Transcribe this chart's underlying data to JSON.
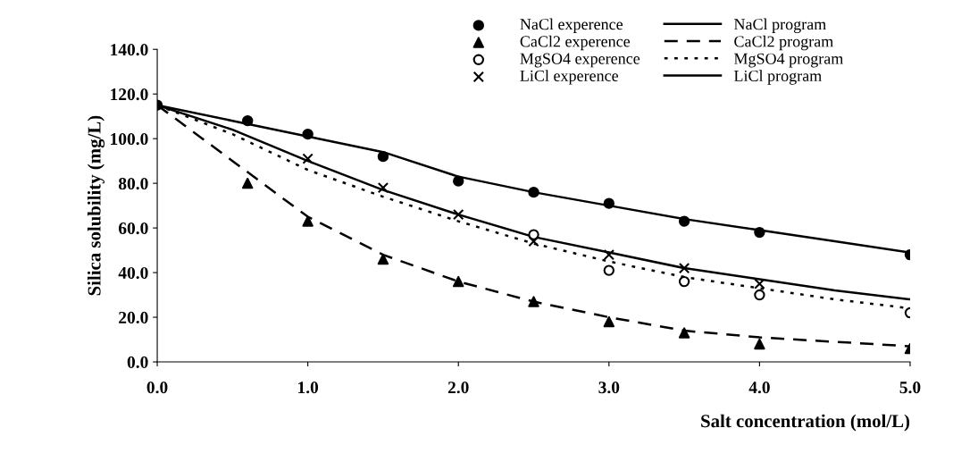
{
  "chart_data": {
    "type": "line",
    "xlabel": "Salt concentration (mol/L)",
    "ylabel": "Silica solubility (mg/L)",
    "xlim": [
      0,
      5
    ],
    "ylim": [
      0,
      140
    ],
    "xticks": [
      {
        "value": 0,
        "label": "0.0"
      },
      {
        "value": 1,
        "label": "1.0"
      },
      {
        "value": 2,
        "label": "2.0"
      },
      {
        "value": 3,
        "label": "3.0"
      },
      {
        "value": 4,
        "label": "4.0"
      },
      {
        "value": 5,
        "label": "5.0"
      }
    ],
    "yticks": [
      {
        "value": 0,
        "label": "0.0"
      },
      {
        "value": 20,
        "label": "20.0"
      },
      {
        "value": 40,
        "label": "40.0"
      },
      {
        "value": 60,
        "label": "60.0"
      },
      {
        "value": 80,
        "label": "80.0"
      },
      {
        "value": 100,
        "label": "100.0"
      },
      {
        "value": 120,
        "label": "120.0"
      },
      {
        "value": 140,
        "label": "140.0"
      }
    ],
    "grid": false,
    "legend": "top right",
    "series": [
      {
        "name": "NaCl experence",
        "type": "scatter",
        "marker": "circle",
        "color": "#000000",
        "x": [
          0,
          0.6,
          1,
          1.5,
          2,
          2.5,
          3,
          3.5,
          4,
          5
        ],
        "values": [
          115,
          108,
          102,
          92,
          81,
          76,
          71,
          63,
          58,
          48
        ]
      },
      {
        "name": "CaCl2 experence",
        "type": "scatter",
        "marker": "triangle",
        "color": "#000000",
        "x": [
          0.6,
          1,
          1.5,
          2,
          2.5,
          3,
          3.5,
          4,
          5
        ],
        "values": [
          80,
          63,
          46,
          36,
          27,
          18,
          13,
          8,
          6
        ]
      },
      {
        "name": "MgSO4 experence",
        "type": "scatter",
        "marker": "circle_open",
        "color": "#000000",
        "x": [
          2.5,
          3,
          3.5,
          4,
          5
        ],
        "values": [
          57,
          41,
          36,
          30,
          22
        ]
      },
      {
        "name": "LiCl experence",
        "type": "scatter",
        "marker": "cross",
        "color": "#000000",
        "x": [
          1,
          1.5,
          2,
          2.5,
          3,
          3.5,
          4
        ],
        "values": [
          91,
          78,
          66,
          54,
          48,
          42,
          35
        ]
      },
      {
        "name": "NaCl program",
        "line_style": "solid",
        "color": "#000000",
        "x": [
          0,
          0.5,
          1,
          1.5,
          2,
          2.5,
          3,
          3.5,
          4,
          4.5,
          5
        ],
        "values": [
          115,
          108,
          101,
          94,
          83,
          76,
          70,
          64,
          59,
          54,
          49
        ]
      },
      {
        "name": "CaCl2 program",
        "line_style": "dashed",
        "color": "#000000",
        "x": [
          0,
          0.5,
          1,
          1.5,
          2,
          2.5,
          3,
          3.5,
          4,
          4.5,
          5
        ],
        "values": [
          115,
          90,
          65,
          48,
          36,
          27,
          20,
          14,
          11,
          9,
          7
        ]
      },
      {
        "name": "MgSO4 program",
        "line_style": "dotted",
        "color": "#000000",
        "x": [
          0,
          0.5,
          1,
          1.5,
          2,
          2.5,
          3,
          3.5,
          4,
          4.5,
          5
        ],
        "values": [
          115,
          102,
          86,
          74,
          63,
          53,
          45,
          38,
          33,
          28,
          24
        ]
      },
      {
        "name": "LiCl program",
        "line_style": "solid",
        "color": "#000000",
        "x": [
          0,
          0.5,
          1,
          1.5,
          2,
          2.5,
          3,
          3.5,
          4,
          4.5,
          5
        ],
        "values": [
          115,
          104,
          90,
          77,
          66,
          56,
          49,
          42,
          37,
          32,
          28
        ]
      }
    ]
  }
}
